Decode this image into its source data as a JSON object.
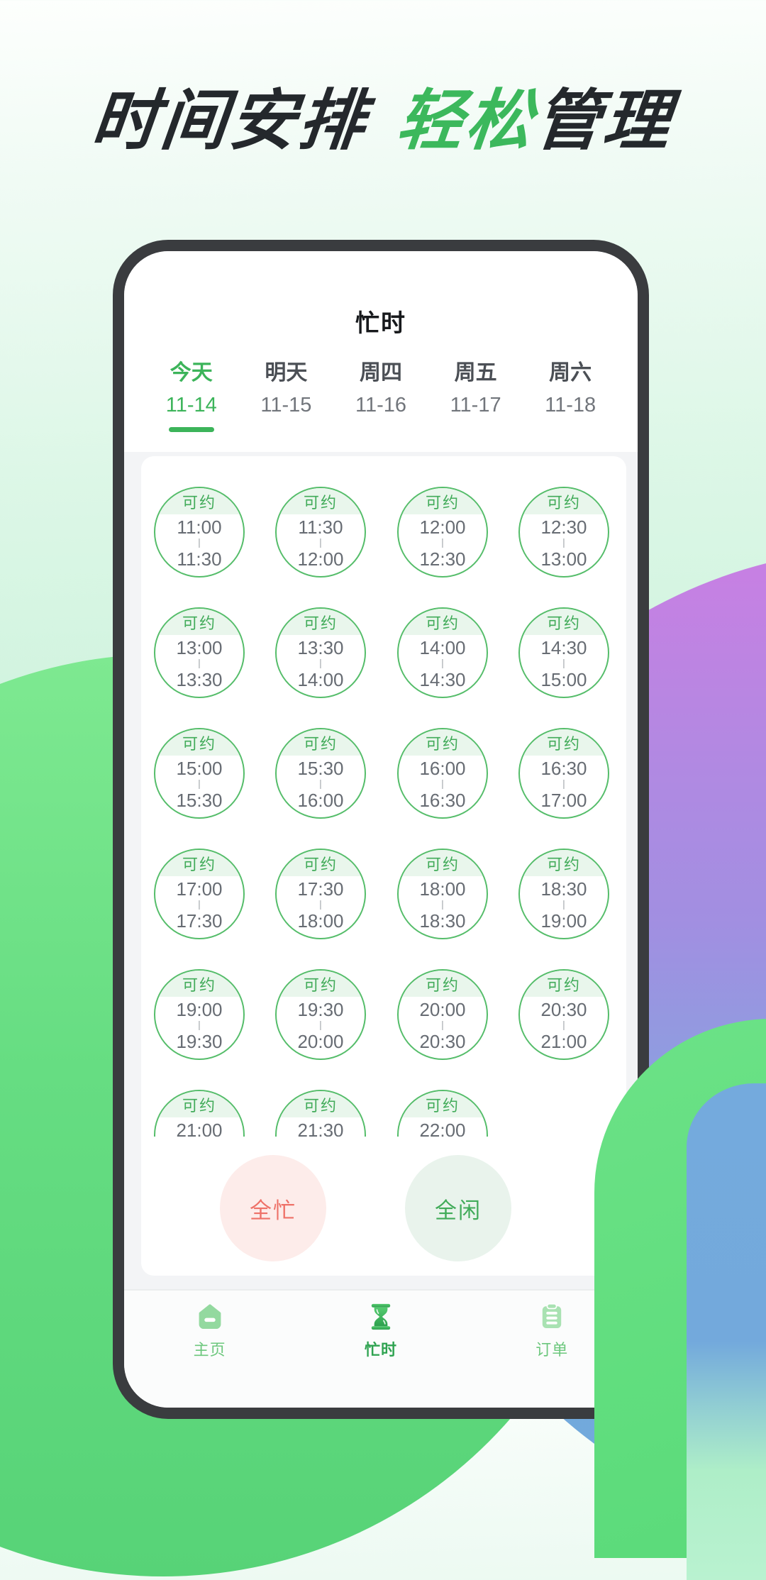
{
  "headline": {
    "black_part": "时间安排",
    "green_part": "轻松",
    "tail_part": "管理"
  },
  "colors": {
    "accent_green": "#3cb45a",
    "circle_border_green": "#55bd6a",
    "badge_bg": "#e9f6ec",
    "busy_bg": "#fdecea",
    "busy_text": "#ee7168",
    "free_bg": "#e9f3ec",
    "free_text": "#41ab59",
    "purple_blob": "#c97fe3",
    "green_blob": "#66dd82",
    "frame": "#3a3c3f"
  },
  "phone": {
    "title": "忙时"
  },
  "tabs": {
    "items": [
      {
        "day": "今天",
        "date": "11-14",
        "active": true
      },
      {
        "day": "明天",
        "date": "11-15",
        "active": false
      },
      {
        "day": "周四",
        "date": "11-16",
        "active": false
      },
      {
        "day": "周五",
        "date": "11-17",
        "active": false
      },
      {
        "day": "周六",
        "date": "11-18",
        "active": false
      }
    ]
  },
  "slots": {
    "badge_label": "可约",
    "separator": "|",
    "items": [
      {
        "start": "11:00",
        "end": "11:30"
      },
      {
        "start": "11:30",
        "end": "12:00"
      },
      {
        "start": "12:00",
        "end": "12:30"
      },
      {
        "start": "12:30",
        "end": "13:00"
      },
      {
        "start": "13:00",
        "end": "13:30"
      },
      {
        "start": "13:30",
        "end": "14:00"
      },
      {
        "start": "14:00",
        "end": "14:30"
      },
      {
        "start": "14:30",
        "end": "15:00"
      },
      {
        "start": "15:00",
        "end": "15:30"
      },
      {
        "start": "15:30",
        "end": "16:00"
      },
      {
        "start": "16:00",
        "end": "16:30"
      },
      {
        "start": "16:30",
        "end": "17:00"
      },
      {
        "start": "17:00",
        "end": "17:30"
      },
      {
        "start": "17:30",
        "end": "18:00"
      },
      {
        "start": "18:00",
        "end": "18:30"
      },
      {
        "start": "18:30",
        "end": "19:00"
      },
      {
        "start": "19:00",
        "end": "19:30"
      },
      {
        "start": "19:30",
        "end": "20:00"
      },
      {
        "start": "20:00",
        "end": "20:30"
      },
      {
        "start": "20:30",
        "end": "21:00"
      },
      {
        "start": "21:00",
        "end": ""
      },
      {
        "start": "21:30",
        "end": ""
      },
      {
        "start": "22:00",
        "end": ""
      }
    ]
  },
  "actions": {
    "all_busy_label": "全忙",
    "all_free_label": "全闲"
  },
  "nav": {
    "items": [
      {
        "label": "主页",
        "icon": "home-icon",
        "active": false
      },
      {
        "label": "忙时",
        "icon": "hourglass-icon",
        "active": true
      },
      {
        "label": "订单",
        "icon": "order-icon",
        "active": false
      }
    ]
  }
}
